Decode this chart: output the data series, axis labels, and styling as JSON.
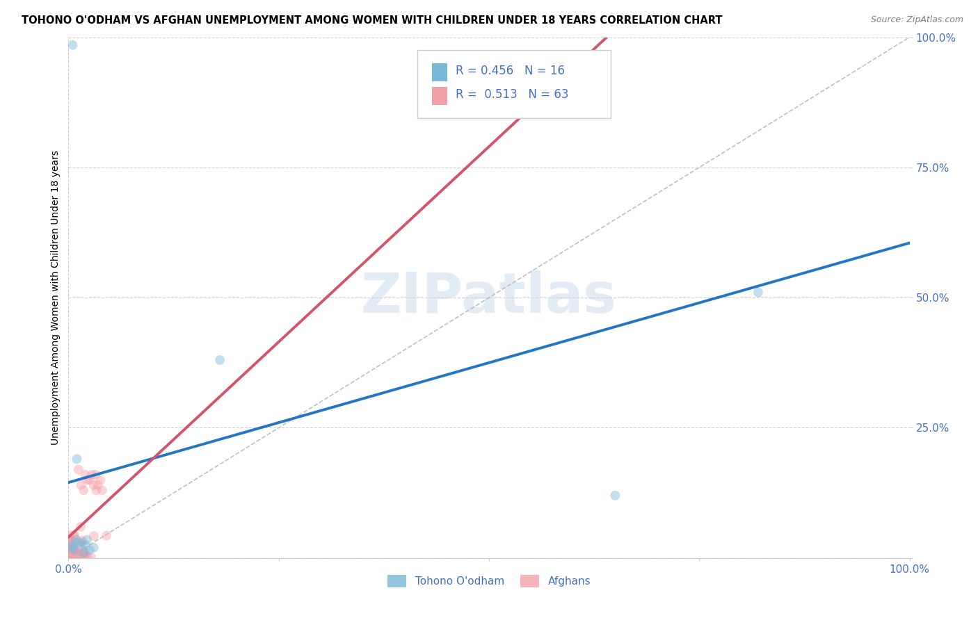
{
  "title": "TOHONO O'ODHAM VS AFGHAN UNEMPLOYMENT AMONG WOMEN WITH CHILDREN UNDER 18 YEARS CORRELATION CHART",
  "source": "Source: ZipAtlas.com",
  "ylabel": "Unemployment Among Women with Children Under 18 years",
  "xlim": [
    0.0,
    1.0
  ],
  "ylim": [
    0.0,
    1.0
  ],
  "x_ticks": [
    0.0,
    0.25,
    0.5,
    0.75,
    1.0
  ],
  "y_ticks": [
    0.0,
    0.25,
    0.5,
    0.75,
    1.0
  ],
  "x_tick_labels": [
    "0.0%",
    "",
    "",
    "",
    "100.0%"
  ],
  "y_tick_labels_right": [
    "",
    "25.0%",
    "50.0%",
    "75.0%",
    "100.0%"
  ],
  "watermark": "ZIPatlas",
  "legend_label_1": "Tohono O'odham",
  "legend_label_2": "Afghans",
  "legend_r1": "0.456",
  "legend_n1": "16",
  "legend_r2": "0.513",
  "legend_n2": "63",
  "tohono_color": "#7ab8d9",
  "afghan_color": "#f4a0a8",
  "tohono_line_color": "#2176c7",
  "afghan_line_color": "#d4546a",
  "diagonal_color": "#c0c0c0",
  "background_color": "#ffffff",
  "grid_color": "#d0d0d0",
  "tick_color": "#4472c4",
  "title_fontsize": 10.5,
  "source_fontsize": 9,
  "axis_label_fontsize": 10,
  "tick_fontsize": 11,
  "legend_fontsize": 12,
  "marker_size": 100,
  "marker_alpha": 0.45,
  "line_width": 2.8,
  "tohono_intercept": 0.145,
  "tohono_slope": 0.46,
  "afghan_intercept": 0.04,
  "afghan_slope": 1.5,
  "tohono_x": [
    0.004,
    0.005,
    0.007,
    0.009,
    0.01,
    0.012,
    0.015,
    0.018,
    0.02,
    0.022,
    0.025,
    0.03,
    0.18,
    0.65,
    0.82,
    0.005
  ],
  "tohono_y": [
    0.02,
    0.025,
    0.015,
    0.035,
    0.19,
    0.03,
    0.025,
    0.01,
    0.025,
    0.035,
    0.015,
    0.02,
    0.38,
    0.12,
    0.51,
    0.985
  ]
}
